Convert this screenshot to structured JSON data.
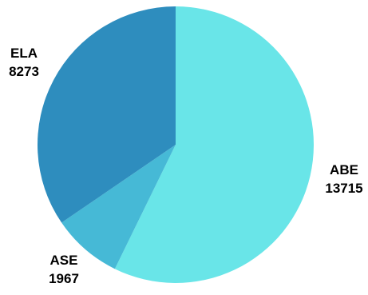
{
  "chart_data": {
    "type": "pie",
    "title": "",
    "labels": [
      "ABE",
      "ASE",
      "ELA"
    ],
    "values": [
      13715,
      1967,
      8273
    ],
    "colors": [
      "#69E5E8",
      "#46B9D6",
      "#2E8DBE"
    ],
    "start_angle_deg": 0,
    "direction": "clockwise",
    "legend": "none",
    "data_labels": "outside"
  }
}
